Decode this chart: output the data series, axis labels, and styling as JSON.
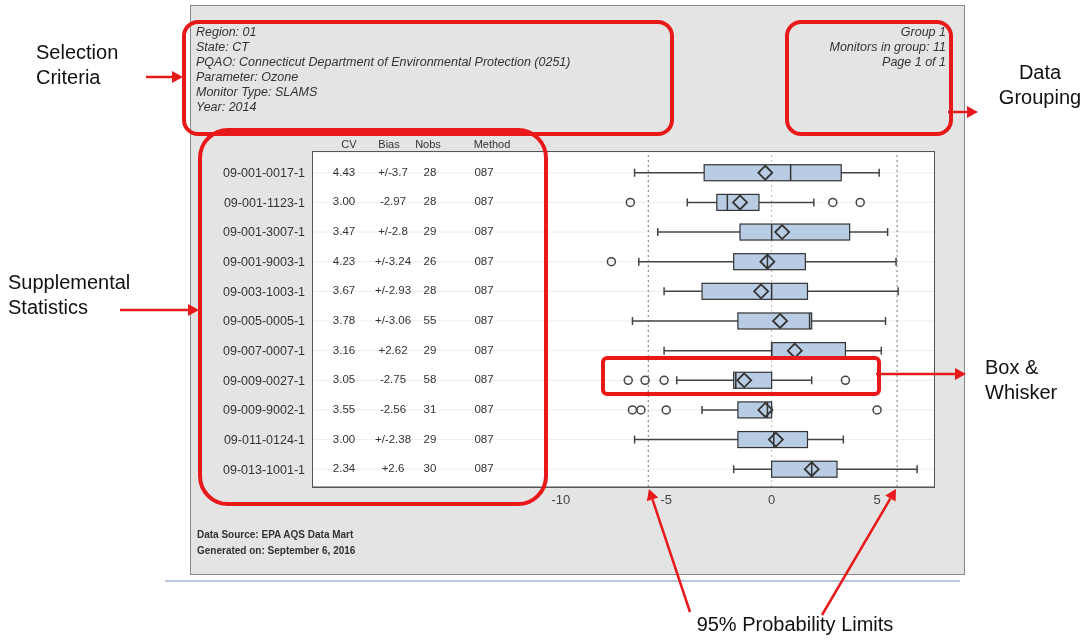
{
  "chart_data": {
    "type": "box",
    "orientation": "horizontal",
    "color": "#b8cce4",
    "categories": [
      "09-001-0017-1",
      "09-001-1123-1",
      "09-001-3007-1",
      "09-001-9003-1",
      "09-003-1003-1",
      "09-005-0005-1",
      "09-007-0007-1",
      "09-009-0027-1",
      "09-009-9002-1",
      "09-011-0124-1",
      "09-013-1001-1"
    ],
    "boxes": [
      {
        "low": -6.5,
        "q1": -3.2,
        "median": 0.9,
        "q3": 3.3,
        "high": 5.1,
        "mean": -0.3
      },
      {
        "low": -4.0,
        "q1": -2.6,
        "median": -2.1,
        "q3": -0.6,
        "high": 2.0,
        "mean": -1.5,
        "outliers": [
          -6.7,
          2.9,
          4.2
        ]
      },
      {
        "low": -5.4,
        "q1": -1.5,
        "median": 0.0,
        "q3": 3.7,
        "high": 5.5,
        "mean": 0.5
      },
      {
        "low": -6.3,
        "q1": -1.8,
        "median": -0.2,
        "q3": 1.6,
        "high": 5.9,
        "mean": -0.2,
        "outliers": [
          -7.6
        ]
      },
      {
        "low": -5.1,
        "q1": -3.3,
        "median": 0.0,
        "q3": 1.7,
        "high": 6.0,
        "mean": -0.5
      },
      {
        "low": -6.6,
        "q1": -1.6,
        "median": 1.8,
        "q3": 1.9,
        "high": 5.4,
        "mean": 0.4
      },
      {
        "low": -5.1,
        "q1": 0.0,
        "median": 0.0,
        "q3": 3.5,
        "high": 5.2,
        "mean": 1.1
      },
      {
        "low": -4.5,
        "q1": -1.8,
        "median": -1.7,
        "q3": 0.0,
        "high": 1.9,
        "mean": -1.3,
        "outliers": [
          -6.8,
          -6.0,
          -5.1,
          3.5
        ]
      },
      {
        "low": -3.3,
        "q1": -1.6,
        "median": -0.2,
        "q3": 0.0,
        "high": 0.0,
        "mean": -0.3,
        "outliers": [
          -6.6,
          -6.2,
          -5.0,
          5.0
        ]
      },
      {
        "low": -6.5,
        "q1": -1.6,
        "median": 0.1,
        "q3": 1.7,
        "high": 3.4,
        "mean": 0.2
      },
      {
        "low": -1.8,
        "q1": 0.0,
        "median": 1.9,
        "q3": 3.1,
        "high": 6.9,
        "mean": 1.9
      }
    ],
    "xlim": [
      -21.75,
      7.7
    ],
    "xticks": [
      -10,
      -5,
      0,
      5
    ],
    "grid": "y",
    "ref_lines": [
      {
        "axis": "x",
        "value": -5.85,
        "color": "#777777",
        "line_style": "dotted"
      },
      {
        "axis": "x",
        "value": 0,
        "color": "#bbbbbb",
        "line_style": "dotted"
      },
      {
        "axis": "x",
        "value": 5.95,
        "color": "#777777",
        "line_style": "dotted"
      }
    ],
    "annotations": [
      "Region: 01",
      "State: CT",
      "PQAO: Connecticut Department of Environmental Protection (0251)",
      "Parameter: Ozone",
      "Monitor Type: SLAMS",
      "Year: 2014",
      "Group 1",
      "Monitors in group: 11",
      "Page 1 of 1",
      "Data Source: EPA AQS Data Mart",
      "Generated on: September 6, 2016",
      "Selection Criteria",
      "Data Grouping",
      "Supplemental Statistics",
      "Box & Whisker",
      "95% Probability Limits",
      "CV",
      "Bias",
      "Nobs",
      "Method",
      "4.43",
      "+/-3.7",
      "28",
      "087",
      "3.00",
      "-2.97",
      "28",
      "087",
      "3.47",
      "+/-2.8",
      "29",
      "087",
      "4.23",
      "+/-3.24",
      "26",
      "087",
      "3.67",
      "+/-2.93",
      "28",
      "087",
      "3.78",
      "+/-3.06",
      "55",
      "087",
      "3.16",
      "+2.62",
      "29",
      "087",
      "3.05",
      "-2.75",
      "58",
      "087",
      "3.55",
      "-2.56",
      "31",
      "087",
      "3.00",
      "+/-2.38",
      "29",
      "087",
      "2.34",
      "+2.6",
      "30",
      "087"
    ]
  }
}
